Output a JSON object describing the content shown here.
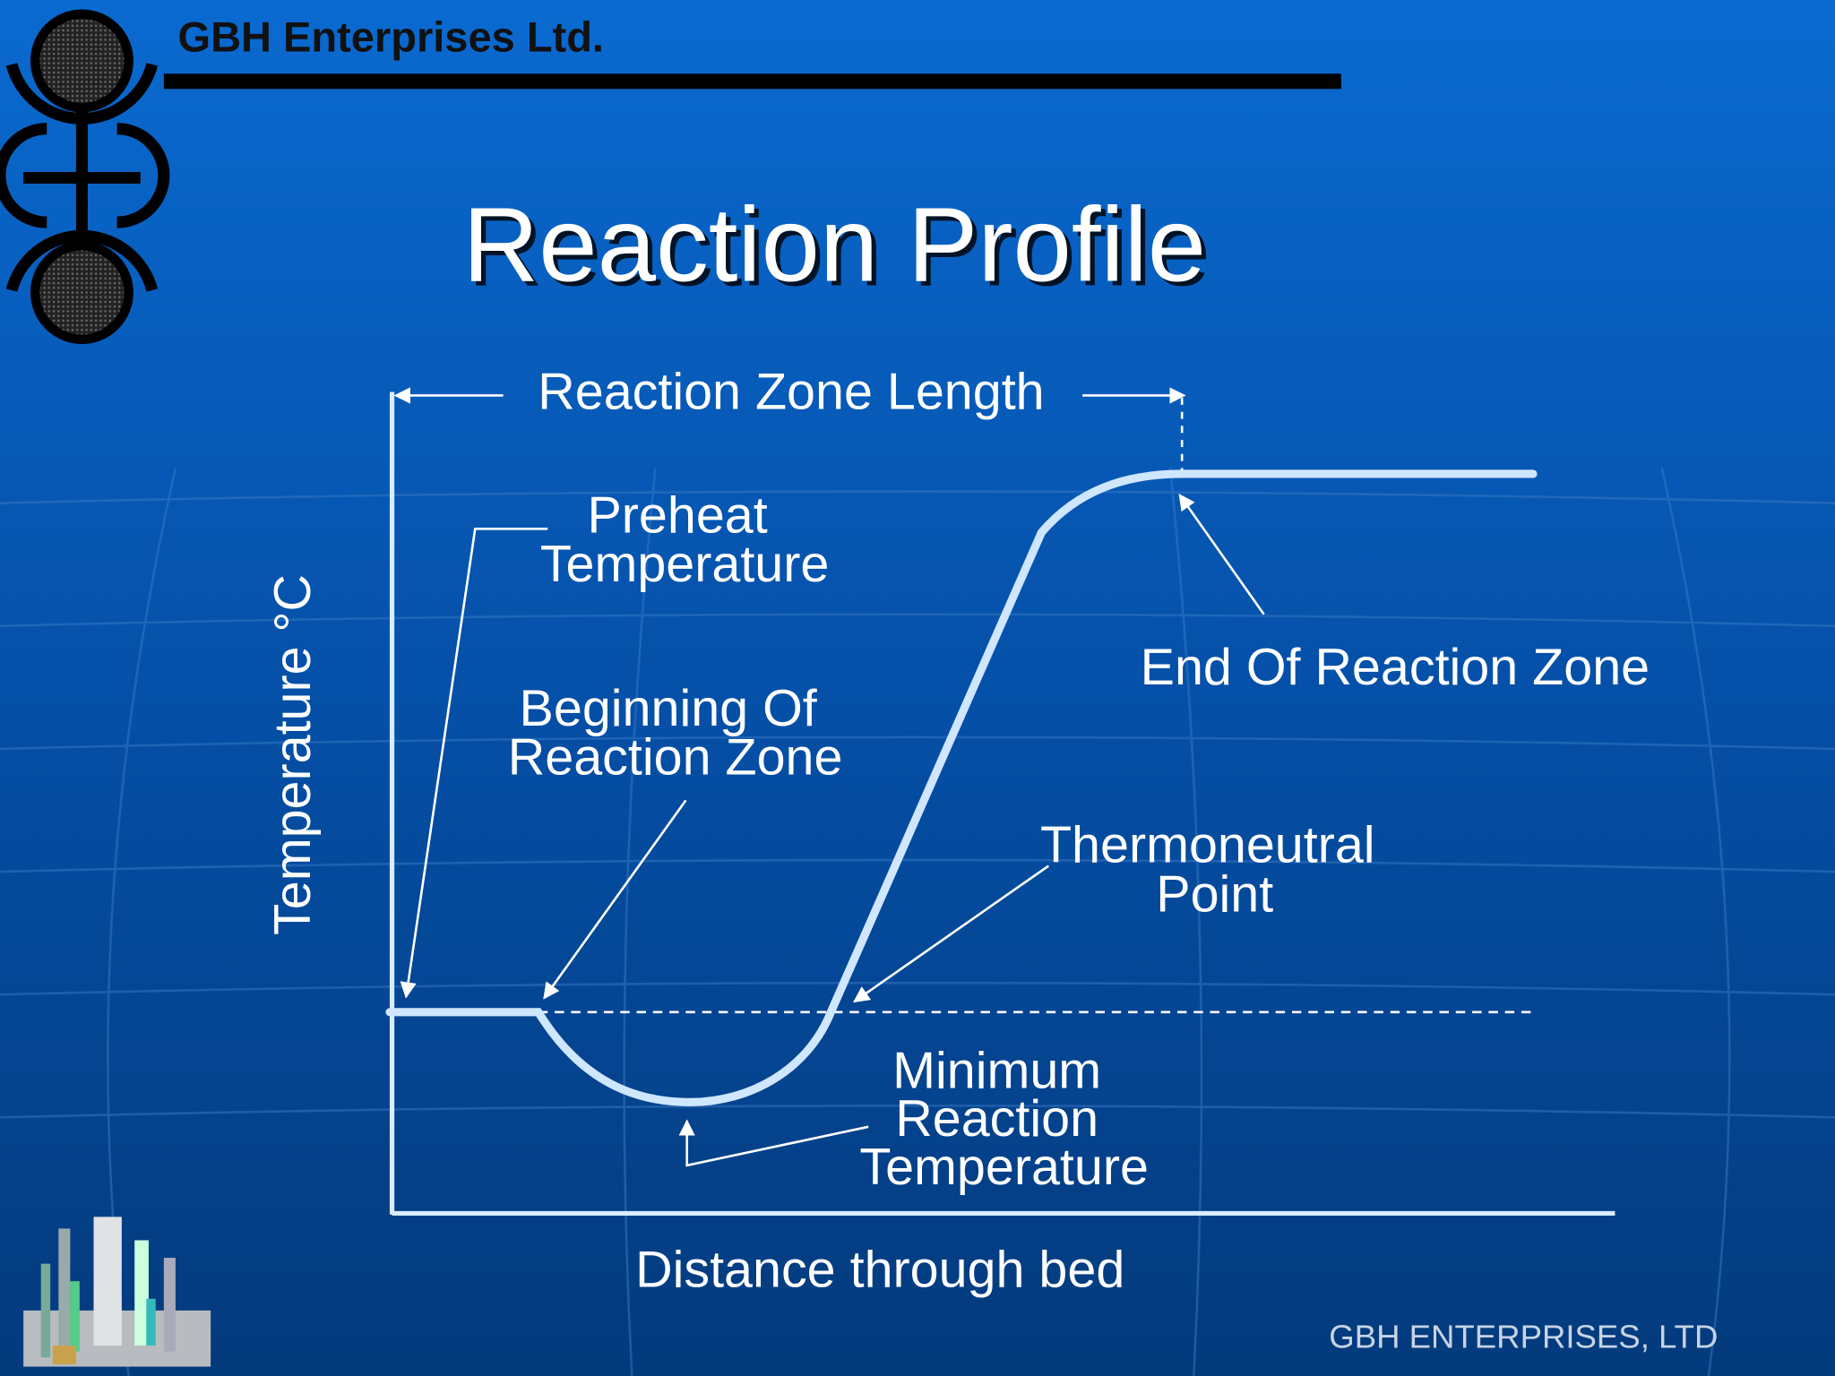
{
  "header": {
    "company": "GBH Enterprises Ltd."
  },
  "title": "Reaction Profile",
  "diagram": {
    "y_axis_label": "Temperature °C",
    "x_axis_label": "Distance through bed",
    "span_label": "Reaction Zone Length",
    "annotations": [
      {
        "lines": [
          "Preheat",
          "Temperature"
        ]
      },
      {
        "lines": [
          "Beginning Of",
          "Reaction Zone"
        ]
      },
      {
        "lines": [
          "End Of Reaction Zone"
        ]
      },
      {
        "lines": [
          "Thermoneutral",
          "Point"
        ]
      },
      {
        "lines": [
          "Minimum",
          "Reaction",
          "Temperature"
        ]
      }
    ]
  },
  "footer": "GBH ENTERPRISES, LTD"
}
